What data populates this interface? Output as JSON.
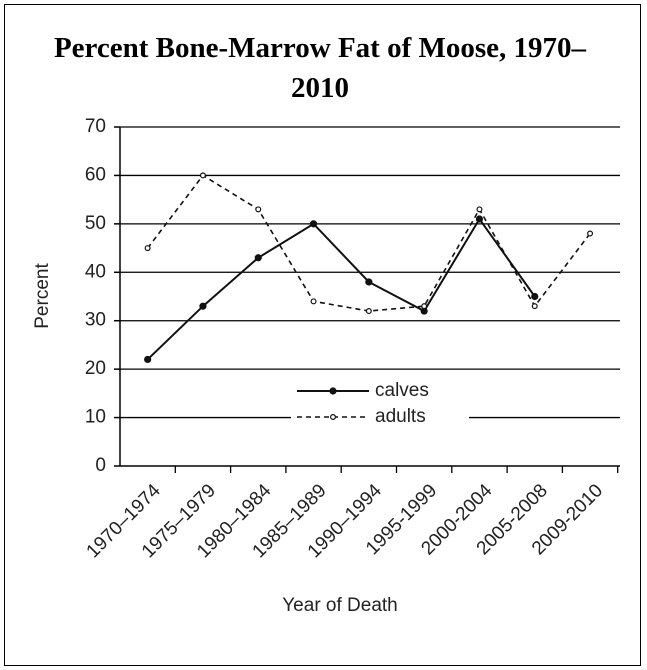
{
  "chart_data": {
    "type": "line",
    "title": "Percent Bone-Marrow Fat of Moose, 1970–2010",
    "x_label": "Year of Death",
    "y_label": "Percent",
    "categories": [
      "1970–1974",
      "1975–1979",
      "1980–1984",
      "1985–1989",
      "1990–1994",
      "1995-1999",
      "2000-2004",
      "2005-2008",
      "2009-2010"
    ],
    "series": [
      {
        "name": "calves",
        "color": "#111111",
        "dash": false,
        "marker": "filled",
        "values": [
          22,
          33,
          43,
          50,
          38,
          32,
          51,
          35,
          null
        ]
      },
      {
        "name": "adults",
        "color": "#111111",
        "dash": true,
        "marker": "open",
        "values": [
          45,
          60,
          53,
          34,
          32,
          33,
          53,
          33,
          48
        ]
      }
    ],
    "ylim": [
      0,
      70
    ],
    "yticks": [
      0,
      10,
      20,
      30,
      40,
      50,
      60,
      70
    ],
    "grid": true,
    "legend": "center"
  }
}
